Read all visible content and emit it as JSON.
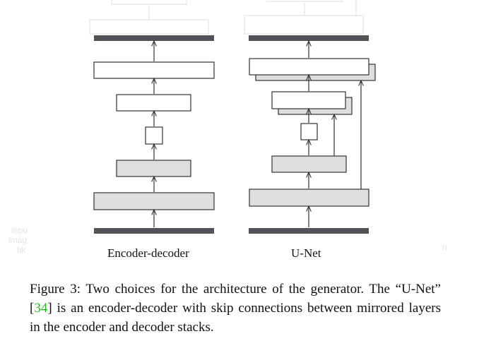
{
  "diagram": {
    "left_label": "Encoder-decoder",
    "right_label": "U-Net",
    "faint_margin_text": [
      "inpu",
      "imag",
      "tik"
    ],
    "faint_right_text": "n"
  },
  "caption": {
    "part1": "Figure 3: Two choices for the architecture of the generator. The “U-Net” [",
    "citation": "34",
    "part2": "] is an encoder-decoder with skip connections between mirrored layers in the encoder and decoder stacks."
  },
  "colors": {
    "stroke": "#333333",
    "bar": "#505458",
    "shaded_fill": "#dedede",
    "citation": "#22b81c",
    "faint_artifact": "#dddddd"
  }
}
